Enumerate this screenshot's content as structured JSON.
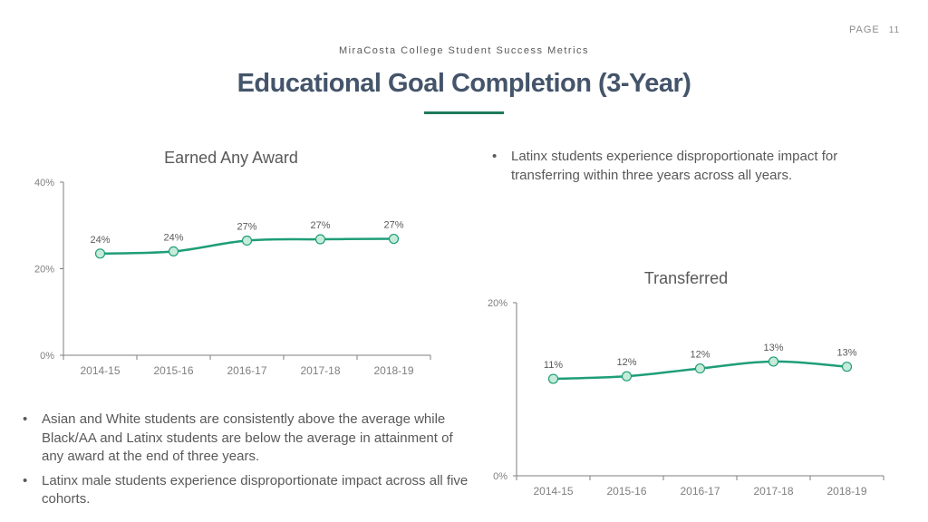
{
  "page": {
    "label": "PAGE",
    "number": "11"
  },
  "header": {
    "subtitle": "MiraCosta College Student Success Metrics",
    "title": "Educational Goal Completion (3-Year)"
  },
  "colors": {
    "line": "#1f9e78",
    "marker_fill": "#c6ecd9",
    "axis": "#7f7f7f",
    "rule": "#1f7a5a"
  },
  "notes": {
    "right": [
      "Latinx students experience disproportionate impact for transferring within three years across all years."
    ],
    "left": [
      "Asian and White students are consistently above the average while Black/AA and Latinx students are below the average in attainment of any award at the end of three years.",
      "Latinx male students experience disproportionate impact across all five cohorts."
    ]
  },
  "chart_data": [
    {
      "type": "line",
      "title": "Earned Any Award",
      "categories": [
        "2014-15",
        "2015-16",
        "2016-17",
        "2017-18",
        "2018-19"
      ],
      "values": [
        23.5,
        24.0,
        26.5,
        26.8,
        26.9
      ],
      "data_labels": [
        "24%",
        "24%",
        "27%",
        "27%",
        "27%"
      ],
      "ylim": [
        0,
        40
      ],
      "yticks": [
        {
          "value": 0,
          "label": "0%"
        },
        {
          "value": 20,
          "label": "20%"
        },
        {
          "value": 40,
          "label": "40%"
        }
      ],
      "grid": false,
      "legend": "none"
    },
    {
      "type": "line",
      "title": "Transferred",
      "categories": [
        "2014-15",
        "2015-16",
        "2016-17",
        "2017-18",
        "2018-19"
      ],
      "values": [
        11.2,
        11.5,
        12.4,
        13.2,
        12.6
      ],
      "data_labels": [
        "11%",
        "12%",
        "12%",
        "13%",
        "13%"
      ],
      "ylim": [
        0,
        20
      ],
      "yticks": [
        {
          "value": 0,
          "label": "0%"
        },
        {
          "value": 20,
          "label": "20%"
        }
      ],
      "grid": false,
      "legend": "none"
    }
  ]
}
